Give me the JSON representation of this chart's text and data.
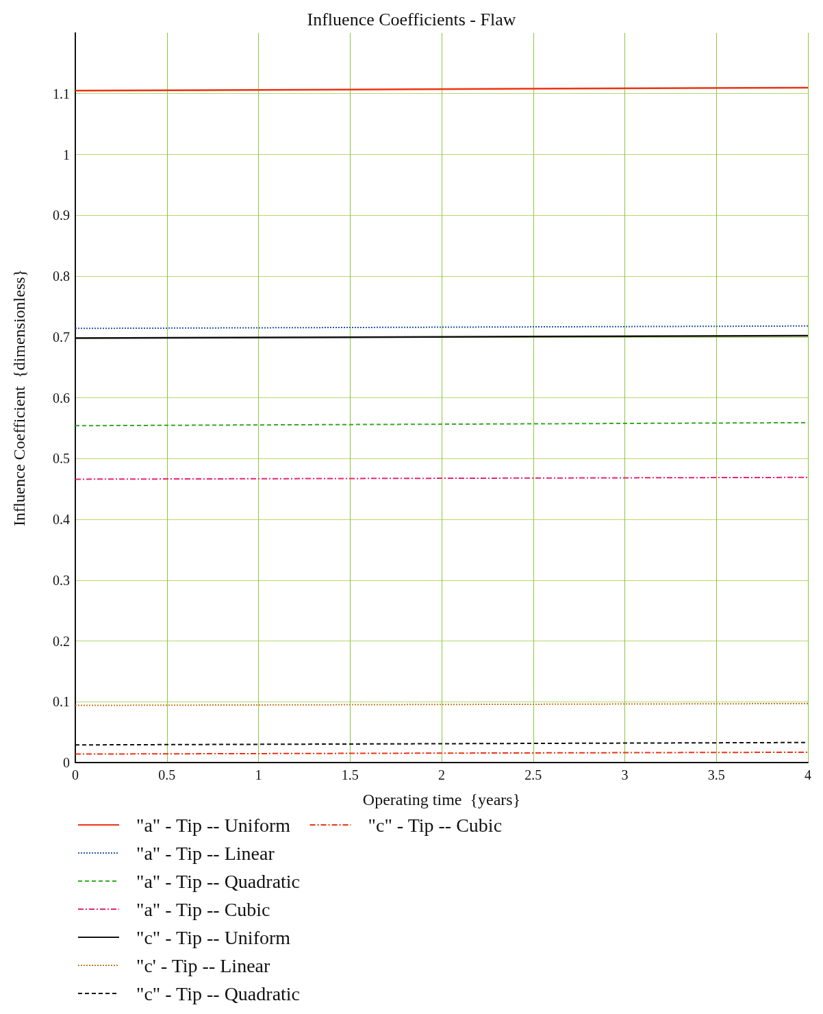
{
  "chart_data": {
    "type": "line",
    "title": "Influence Coefficients - Flaw",
    "xlabel": "Operating time  {years}",
    "ylabel": "Influence Coefficient  {dimensionless}",
    "x": [
      0,
      4
    ],
    "xlim": [
      0,
      4
    ],
    "xticks": [
      0,
      0.5,
      1,
      1.5,
      2,
      2.5,
      3,
      3.5,
      4
    ],
    "ylim": [
      0,
      1.2
    ],
    "yticks": [
      0,
      0.1,
      0.2,
      0.3,
      0.4,
      0.5,
      0.6,
      0.7,
      0.8,
      0.9,
      1,
      1.1
    ],
    "grid": true,
    "legend": "bottom left",
    "marker": "none",
    "series": [
      {
        "name": "\"a\" - Tip -- Uniform",
        "color": "#ee3311",
        "line_style": "solid",
        "values": [
          1.105,
          1.11
        ]
      },
      {
        "name": "\"a\" - Tip -- Linear",
        "color": "#2255aa",
        "line_style": "dotted",
        "values": [
          0.714,
          0.718
        ]
      },
      {
        "name": "\"a\" - Tip -- Quadratic",
        "color": "#33aa22",
        "line_style": "dashed",
        "values": [
          0.554,
          0.559
        ]
      },
      {
        "name": "\"a\" - Tip -- Cubic",
        "color": "#e8246e",
        "line_style": "dashdot",
        "values": [
          0.466,
          0.469
        ]
      },
      {
        "name": "\"c\" - Tip -- Uniform",
        "color": "#111111",
        "line_style": "solid",
        "values": [
          0.698,
          0.702
        ]
      },
      {
        "name": "\"c' - Tip -- Linear",
        "color": "#cc7722",
        "line_style": "dotted",
        "values": [
          0.094,
          0.097
        ]
      },
      {
        "name": "\"c\" - Tip -- Quadratic",
        "color": "#111111",
        "line_style": "dashed",
        "values": [
          0.029,
          0.033
        ]
      },
      {
        "name": "\"c\" - Tip -- Cubic",
        "color": "#ee3311",
        "line_style": "dashdot",
        "values": [
          0.014,
          0.017
        ]
      }
    ]
  }
}
